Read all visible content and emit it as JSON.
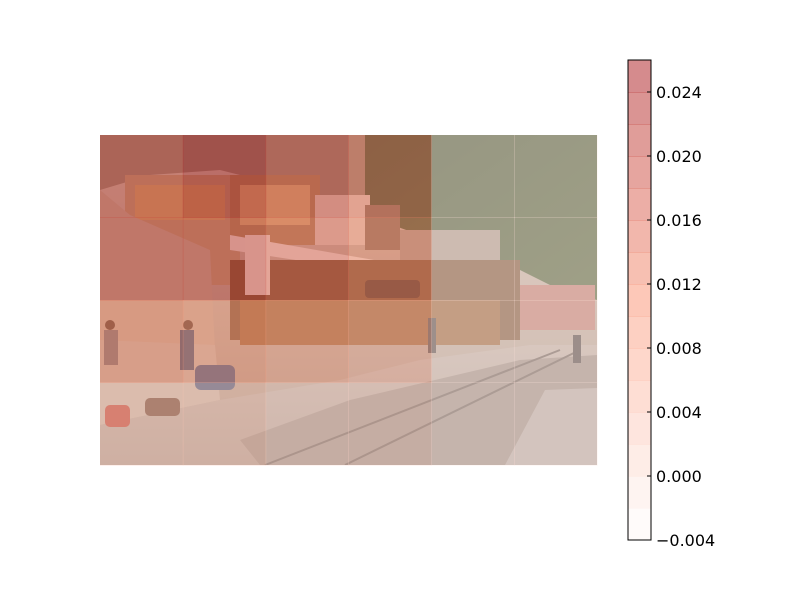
{
  "chart_data": {
    "type": "heatmap",
    "title": "",
    "xlabel": "",
    "ylabel": "",
    "background_image": "street-photo",
    "colormap": "Reds",
    "alpha": 0.5,
    "grid": false,
    "axes_visible": false,
    "values": [
      [
        0.02,
        0.024,
        0.019,
        0.014,
        0.0,
        0.0
      ],
      [
        0.02,
        0.02,
        0.016,
        0.012,
        0.0,
        0.0
      ],
      [
        0.012,
        0.01,
        0.008,
        0.006,
        0.0,
        0.0
      ],
      [
        0.004,
        0.004,
        0.002,
        0.002,
        0.0,
        0.0
      ]
    ],
    "colorbar": {
      "placement": "right",
      "min": -0.004,
      "max": 0.026,
      "levels": 15,
      "ticks": [
        -0.004,
        0.0,
        0.004,
        0.008,
        0.012,
        0.016,
        0.02,
        0.024
      ],
      "tick_labels": [
        "−0.004",
        "0.000",
        "0.004",
        "0.008",
        "0.012",
        "0.016",
        "0.020",
        "0.024"
      ]
    }
  }
}
